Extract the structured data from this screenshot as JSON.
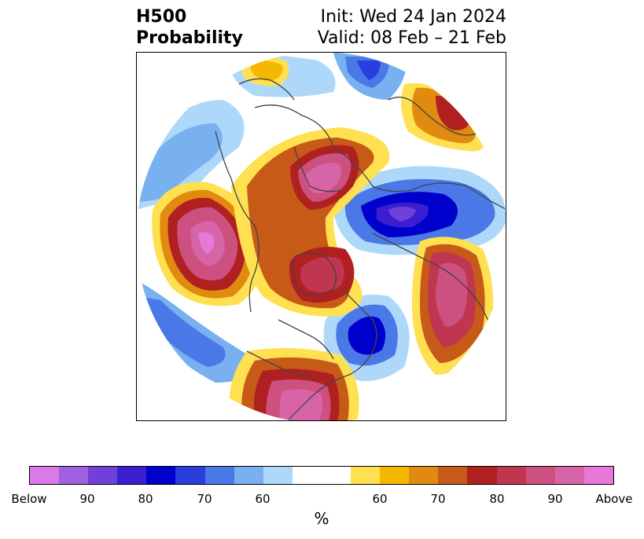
{
  "title": {
    "left_line1": "H500",
    "left_line2": "Probability",
    "right_line1": "Init: Wed 24 Jan 2024",
    "right_line2": "Valid: 08 Feb – 21 Feb"
  },
  "colorbar": {
    "unit": "%",
    "colors": [
      "#d97ae8",
      "#a060e0",
      "#7040d8",
      "#3a1ed0",
      "#0000cc",
      "#2a3ede",
      "#4a78e6",
      "#78b0f0",
      "#aed8fa",
      "#ffffff",
      "#ffffff",
      "#ffe050",
      "#f4b800",
      "#e08a10",
      "#c85a18",
      "#b02020",
      "#c03650",
      "#cc5080",
      "#d864a8",
      "#e878d8"
    ],
    "ticks": [
      "Below",
      "90",
      "80",
      "70",
      "60",
      "60",
      "70",
      "80",
      "90",
      "Above"
    ]
  },
  "colors": {
    "land": "#ffffff",
    "coast": "#444444"
  }
}
